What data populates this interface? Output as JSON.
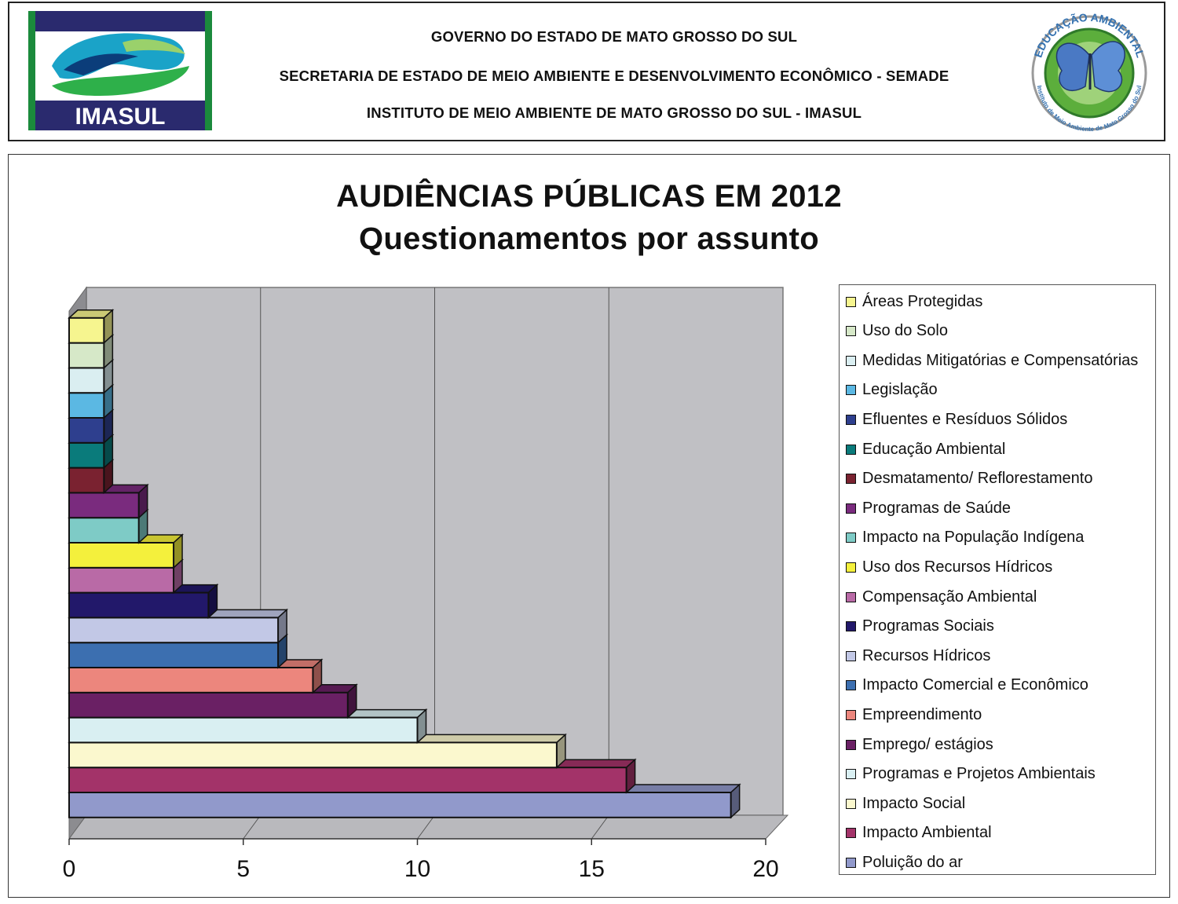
{
  "header": {
    "line1": "GOVERNO DO ESTADO DE MATO GROSSO DO SUL",
    "line2": "SECRETARIA DE ESTADO DE MEIO AMBIENTE E DESENVOLVIMENTO ECONÔMICO - SEMADE",
    "line3": "INSTITUTO DE MEIO AMBIENTE DE MATO GROSSO DO SUL - IMASUL",
    "logo_left_text": "IMASUL",
    "logo_right_text_top": "EDUCAÇÃO AMBIENTAL",
    "logo_right_text_bottom": "Instituto de Meio Ambiente de Mato Grosso do Sul"
  },
  "chart_data": {
    "type": "bar",
    "orientation": "horizontal",
    "style": "3d",
    "title": "AUDIÊNCIAS PÚBLICAS EM 2012",
    "subtitle": "Questionamentos por assunto",
    "xlim": [
      0,
      20
    ],
    "xticks": [
      "0",
      "5",
      "10",
      "15",
      "20"
    ],
    "grid": true,
    "legend_position": "right",
    "series": [
      {
        "name": "Áreas Protegidas",
        "value": 1,
        "color": "#f6f58f"
      },
      {
        "name": "Uso do Solo",
        "value": 1,
        "color": "#d6e8c8"
      },
      {
        "name": "Medidas Mitigatórias e Compensatórias",
        "value": 1,
        "color": "#daeef1"
      },
      {
        "name": "Legislação",
        "value": 1,
        "color": "#5bb8e3"
      },
      {
        "name": "Efluentes e Resíduos Sólidos",
        "value": 1,
        "color": "#2e3f8e"
      },
      {
        "name": "Educação Ambiental",
        "value": 1,
        "color": "#0a7b7b"
      },
      {
        "name": "Desmatamento/ Reflorestamento",
        "value": 1,
        "color": "#7a2230"
      },
      {
        "name": "Programas de Saúde",
        "value": 2,
        "color": "#7a2b7e"
      },
      {
        "name": "Impacto na População Indígena",
        "value": 2,
        "color": "#7ecbc6"
      },
      {
        "name": "Uso dos Recursos Hídricos",
        "value": 3,
        "color": "#f4f03c"
      },
      {
        "name": "Compensação Ambiental",
        "value": 3,
        "color": "#b96aa6"
      },
      {
        "name": "Programas Sociais",
        "value": 4,
        "color": "#22186a"
      },
      {
        "name": "Recursos Hídricos",
        "value": 6,
        "color": "#c2c8e6"
      },
      {
        "name": "Impacto Comercial e Econômico",
        "value": 6,
        "color": "#3c6fb0"
      },
      {
        "name": "Empreendimento",
        "value": 7,
        "color": "#ec867d"
      },
      {
        "name": "Emprego/ estágios",
        "value": 8,
        "color": "#6a2064"
      },
      {
        "name": "Programas e Projetos Ambientais",
        "value": 10,
        "color": "#d9eff2"
      },
      {
        "name": "Impacto Social",
        "value": 14,
        "color": "#fbf8ce"
      },
      {
        "name": "Impacto Ambiental",
        "value": 16,
        "color": "#a33369"
      },
      {
        "name": "Poluição do ar",
        "value": 19,
        "color": "#9199cb"
      }
    ]
  }
}
